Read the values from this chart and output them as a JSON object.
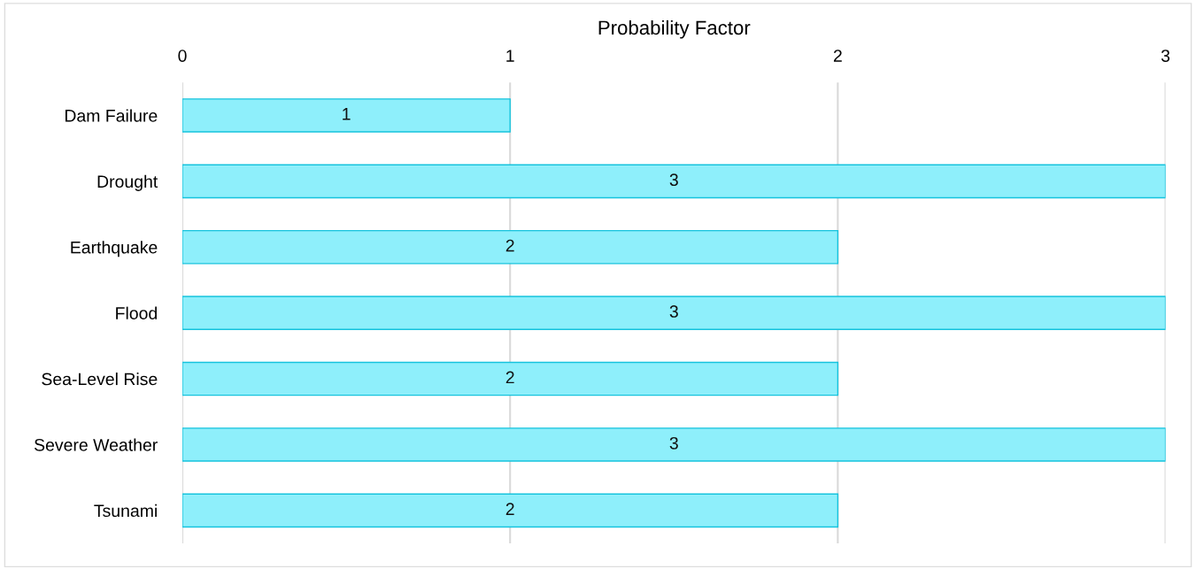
{
  "chart_data": {
    "type": "bar",
    "orientation": "horizontal",
    "xlabel": "Probability Factor",
    "categories": [
      "Dam Failure",
      "Drought",
      "Earthquake",
      "Flood",
      "Sea-Level Rise",
      "Severe Weather",
      "Tsunami"
    ],
    "values": [
      1,
      3,
      2,
      3,
      2,
      3,
      2
    ],
    "color": "#8eeffb",
    "xlim": [
      0,
      3
    ],
    "xticks": [
      0,
      1,
      2,
      3
    ],
    "grid": "x",
    "data_labels": true
  }
}
